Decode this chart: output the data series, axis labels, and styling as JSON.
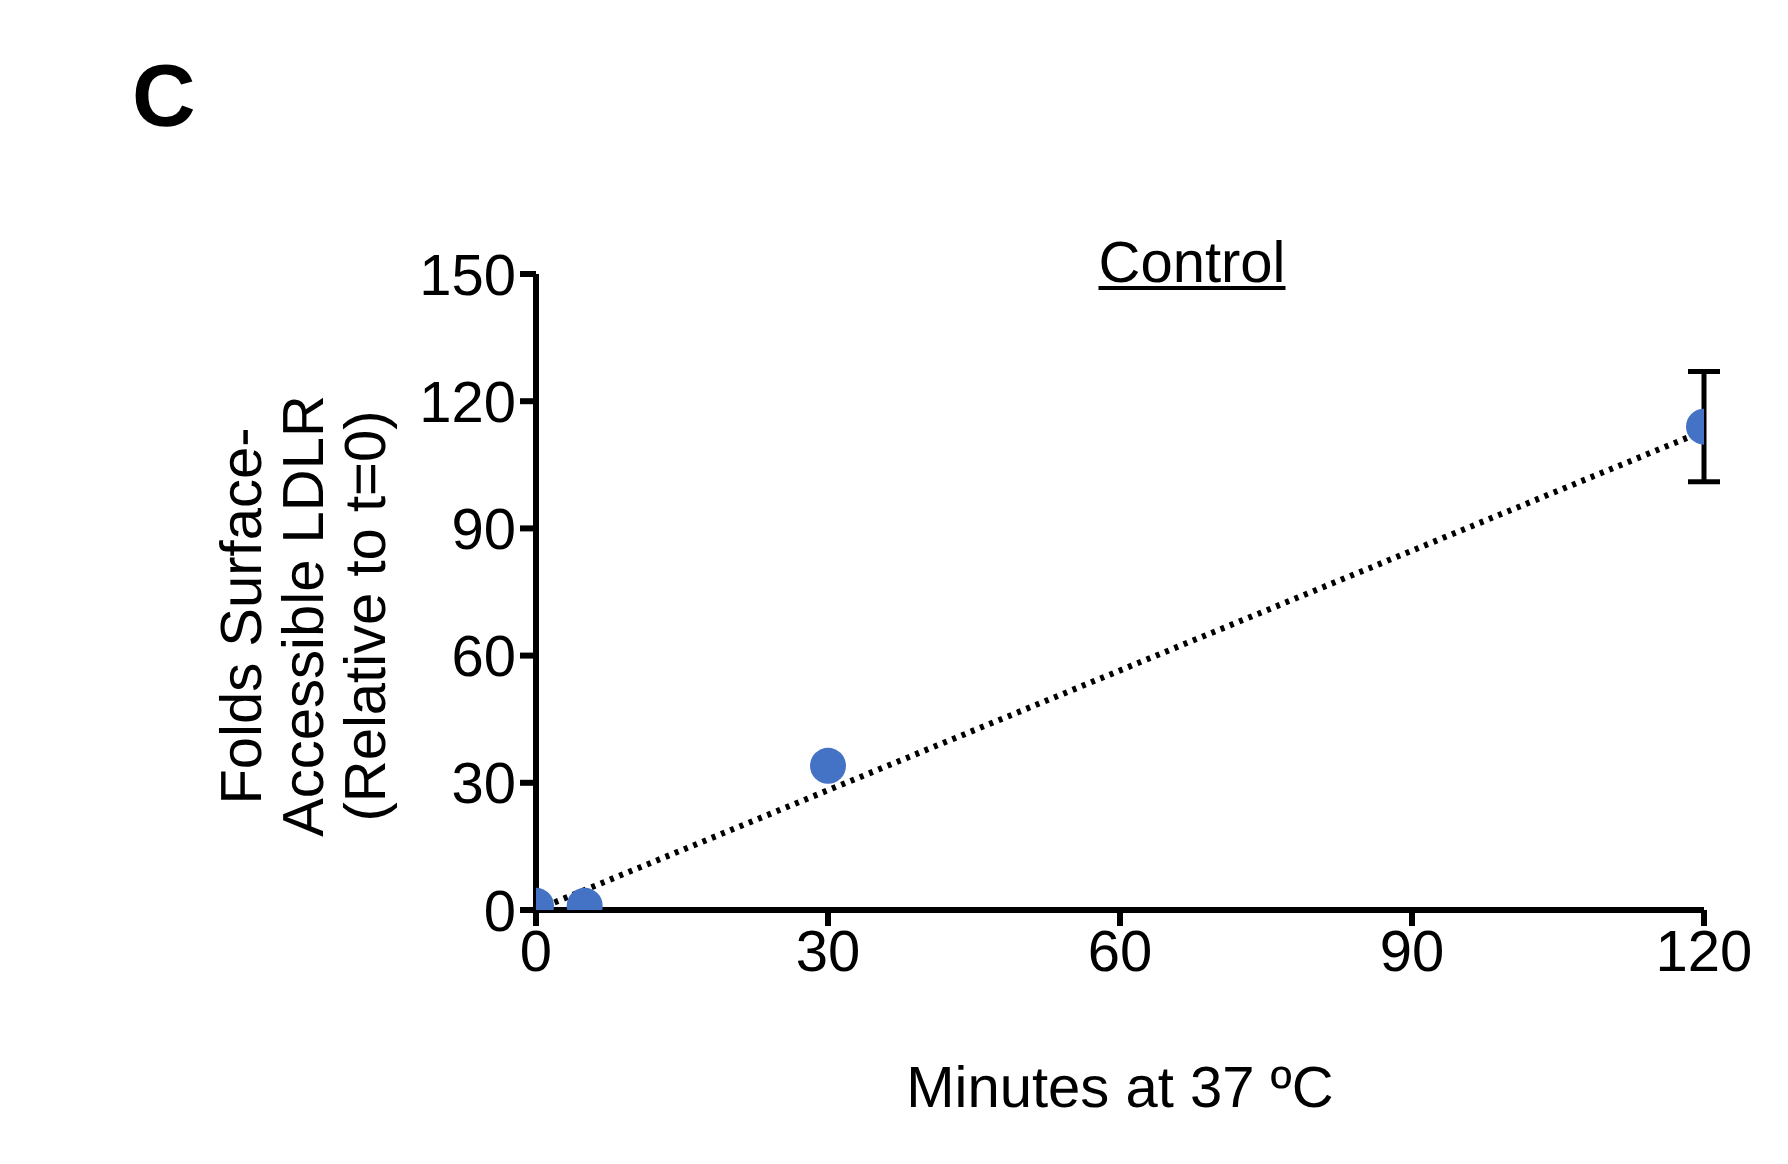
{
  "chart_data": {
    "type": "scatter",
    "title": "Control",
    "xlabel": "Minutes at 37 ºC",
    "ylabel": "Folds Surface-\nAccessible LDLR\n(Relative to t=0)",
    "annotations": [
      "C"
    ],
    "x": [
      0,
      5,
      30,
      120
    ],
    "series": [
      {
        "color": "#4472c4",
        "values": [
          1,
          1,
          34,
          114
        ],
        "errors": [
          null,
          null,
          null,
          13
        ],
        "marker": "circle"
      },
      {
        "type": "line",
        "color": "#000000",
        "x": [
          0,
          120
        ],
        "values": [
          0,
          113
        ],
        "line_style": "dotted",
        "marker": "none"
      }
    ],
    "xlim": [
      0,
      120
    ],
    "xticks": [
      0,
      30,
      60,
      90,
      120
    ],
    "ylim": [
      0,
      150
    ],
    "yticks": [
      0,
      30,
      60,
      90,
      120,
      150
    ],
    "grid": false,
    "legend": false
  }
}
